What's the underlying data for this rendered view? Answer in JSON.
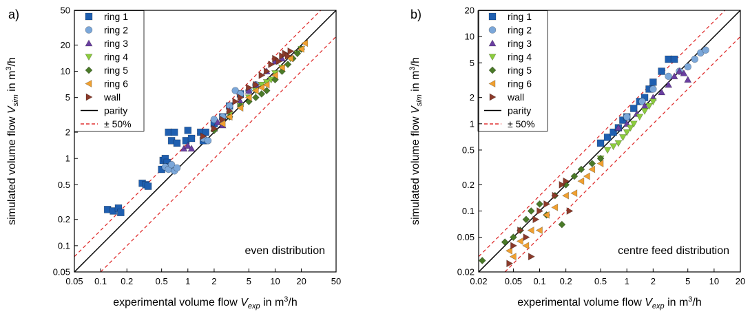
{
  "chart_data": [
    {
      "type": "scatter",
      "panel_label": "a)",
      "annotation": "even distribution",
      "xlabel": {
        "pre": "experimental volume flow ",
        "sym": "V",
        "sub": "exp",
        "unit": " in m",
        "sup": "3",
        "post": "/h"
      },
      "ylabel": {
        "pre": "simulated volume flow ",
        "sym": "V",
        "sub": "sim",
        "unit": " in m",
        "sup": "3",
        "post": "/h"
      },
      "xscale": "log",
      "yscale": "log",
      "xlim": [
        0.05,
        50
      ],
      "ylim": [
        0.05,
        50
      ],
      "xticks": [
        0.05,
        0.1,
        0.2,
        0.5,
        1,
        2,
        5,
        10,
        20,
        50
      ],
      "xtick_labels": [
        "0.05",
        "0.1",
        "0.2",
        "0.5",
        "1",
        "2",
        "5",
        "10",
        "20",
        "50"
      ],
      "yticks": [
        0.05,
        0.1,
        0.2,
        0.5,
        1,
        2,
        5,
        10,
        20,
        50
      ],
      "ytick_labels": [
        "0.05",
        "0.1",
        "0.2",
        "0.5",
        "1",
        "2",
        "5",
        "10",
        "20",
        "50"
      ],
      "legend_position": "top-left",
      "series": [
        {
          "name": "ring 1",
          "marker": "square",
          "color": "#1f5fb0",
          "x": [
            0.12,
            0.14,
            0.16,
            0.17,
            0.3,
            0.33,
            0.35,
            0.5,
            0.52,
            0.55,
            0.58,
            0.62,
            0.6,
            0.65,
            0.7,
            0.75,
            0.95,
            1.0,
            1.1,
            1.4,
            1.5,
            1.6,
            2.0,
            2.5,
            3.0,
            4.0
          ],
          "y": [
            0.26,
            0.25,
            0.27,
            0.24,
            0.52,
            0.5,
            0.48,
            0.75,
            0.95,
            1.0,
            0.9,
            0.8,
            2.0,
            1.6,
            2.0,
            1.5,
            1.6,
            2.1,
            1.7,
            2.0,
            1.6,
            2.0,
            2.5,
            3.0,
            4.0,
            5.5
          ]
        },
        {
          "name": "ring 2",
          "marker": "circle",
          "color": "#7ba7d9",
          "x": [
            0.55,
            0.6,
            0.65,
            0.7,
            0.75,
            1.5,
            1.7,
            2.0,
            2.5,
            3.0,
            3.5,
            4.0,
            5.0,
            6.0
          ],
          "y": [
            0.8,
            0.75,
            0.85,
            0.72,
            0.78,
            1.7,
            1.6,
            2.8,
            3.0,
            4.0,
            6.0,
            5.5,
            6.0,
            7.0
          ]
        },
        {
          "name": "ring 3",
          "marker": "triangle-up",
          "color": "#6a3fa0",
          "x": [
            0.9,
            1.0,
            1.1,
            2.0,
            2.2,
            2.5,
            3.0,
            4.0,
            5.0,
            6.0,
            8.0,
            10.0,
            12.0
          ],
          "y": [
            1.3,
            1.4,
            1.3,
            2.2,
            2.6,
            2.4,
            3.5,
            4.5,
            6.0,
            7.0,
            10.0,
            13.0,
            14.0
          ]
        },
        {
          "name": "ring 4",
          "marker": "triangle-down",
          "color": "#8ccc3e",
          "x": [
            3.0,
            4.0,
            5.0,
            6.0,
            7.0,
            8.0,
            9.0,
            10.0,
            12.0,
            15.0,
            18.0,
            20.0
          ],
          "y": [
            3.2,
            4.0,
            5.0,
            6.0,
            7.0,
            7.5,
            8.0,
            9.5,
            11.0,
            14.0,
            16.0,
            18.0
          ]
        },
        {
          "name": "ring 5",
          "marker": "diamond",
          "color": "#4a7a28",
          "x": [
            2.0,
            3.0,
            4.0,
            5.0,
            6.0,
            7.0,
            8.0,
            10.0,
            12.0,
            14.0,
            16.0,
            18.0,
            20.0
          ],
          "y": [
            2.1,
            3.0,
            4.0,
            4.5,
            5.0,
            5.5,
            6.0,
            8.0,
            10.0,
            12.0,
            14.0,
            16.0,
            18.0
          ]
        },
        {
          "name": "ring 6",
          "marker": "triangle-left",
          "color": "#f0a030",
          "x": [
            2.5,
            3.0,
            4.0,
            5.0,
            6.0,
            7.0,
            8.0,
            10.0,
            12.0,
            15.0,
            20.0,
            22.0
          ],
          "y": [
            2.5,
            3.0,
            3.8,
            5.0,
            6.0,
            6.5,
            7.0,
            9.0,
            11.0,
            14.0,
            18.0,
            21.0
          ]
        },
        {
          "name": "wall",
          "marker": "triangle-right",
          "color": "#8b3a2a",
          "x": [
            1.5,
            2.0,
            2.5,
            3.0,
            3.5,
            4.0,
            5.0,
            6.0,
            7.0,
            8.0,
            9.0,
            10.0,
            11.0,
            12.0,
            13.0,
            14.0,
            15.0
          ],
          "y": [
            1.8,
            2.2,
            2.8,
            3.5,
            4.5,
            5.0,
            6.5,
            7.0,
            9.0,
            10.0,
            12.0,
            14.0,
            13.0,
            15.0,
            16.0,
            15.0,
            17.0
          ]
        }
      ],
      "lines": [
        {
          "name": "parity",
          "style": "solid",
          "color": "#000000"
        },
        {
          "name": "± 50%",
          "style": "dashed",
          "color": "#e03030"
        }
      ]
    },
    {
      "type": "scatter",
      "panel_label": "b)",
      "annotation": "centre feed distribution",
      "xlabel": {
        "pre": "experimental volume flow ",
        "sym": "V",
        "sub": "exp",
        "unit": " in m",
        "sup": "3",
        "post": "/h"
      },
      "ylabel": {
        "pre": "simulated volume flow ",
        "sym": "V",
        "sub": "sim",
        "unit": " in m",
        "sup": "3",
        "post": "/h"
      },
      "xscale": "log",
      "yscale": "log",
      "xlim": [
        0.02,
        20
      ],
      "ylim": [
        0.02,
        20
      ],
      "xticks": [
        0.02,
        0.05,
        0.1,
        0.2,
        0.5,
        1,
        2,
        5,
        10,
        20
      ],
      "xtick_labels": [
        "0.02",
        "0.05",
        "0.1",
        "0.2",
        "0.5",
        "1",
        "2",
        "5",
        "10",
        "20"
      ],
      "yticks": [
        0.02,
        0.05,
        0.1,
        0.2,
        0.5,
        1,
        2,
        5,
        10,
        20
      ],
      "ytick_labels": [
        "0.02",
        "0.05",
        "0.1",
        "0.2",
        "0.5",
        "1",
        "2",
        "5",
        "10",
        "20"
      ],
      "legend_position": "top-left",
      "series": [
        {
          "name": "ring 1",
          "marker": "square",
          "color": "#1f5fb0",
          "x": [
            0.5,
            0.6,
            0.7,
            0.8,
            0.9,
            1.0,
            1.2,
            1.4,
            1.6,
            1.8,
            2.0,
            2.5,
            3.0,
            3.5
          ],
          "y": [
            0.6,
            0.7,
            0.8,
            0.9,
            1.1,
            1.2,
            1.5,
            1.8,
            2.0,
            2.5,
            3.0,
            4.0,
            5.5,
            5.5
          ]
        },
        {
          "name": "ring 2",
          "marker": "circle",
          "color": "#7ba7d9",
          "x": [
            1.0,
            1.5,
            2.0,
            3.0,
            4.0,
            5.0,
            6.0,
            7.0,
            8.0
          ],
          "y": [
            1.2,
            1.8,
            2.5,
            3.5,
            4.0,
            4.5,
            5.5,
            6.5,
            7.0
          ]
        },
        {
          "name": "ring 3",
          "marker": "triangle-up",
          "color": "#6a3fa0",
          "x": [
            0.8,
            1.0,
            1.3,
            1.6,
            2.0,
            2.5,
            3.0,
            3.5,
            4.0,
            4.5,
            5.0
          ],
          "y": [
            0.9,
            1.0,
            1.3,
            1.6,
            2.0,
            2.3,
            2.8,
            3.5,
            4.0,
            3.8,
            3.2
          ]
        },
        {
          "name": "ring 4",
          "marker": "triangle-down",
          "color": "#8ccc3e",
          "x": [
            0.5,
            0.6,
            0.7,
            0.8,
            0.9,
            1.0,
            1.1,
            1.2,
            1.4,
            1.6,
            1.8,
            2.0
          ],
          "y": [
            0.4,
            0.5,
            0.55,
            0.6,
            0.7,
            0.8,
            0.9,
            1.0,
            1.2,
            1.4,
            1.6,
            1.8
          ]
        },
        {
          "name": "ring 5",
          "marker": "diamond",
          "color": "#4a7a28",
          "x": [
            0.022,
            0.04,
            0.05,
            0.06,
            0.07,
            0.08,
            0.1,
            0.12,
            0.15,
            0.18,
            0.2,
            0.25,
            0.3,
            0.4,
            0.5
          ],
          "y": [
            0.027,
            0.044,
            0.05,
            0.06,
            0.08,
            0.1,
            0.12,
            0.09,
            0.15,
            0.07,
            0.2,
            0.25,
            0.3,
            0.35,
            0.4
          ]
        },
        {
          "name": "ring 6",
          "marker": "triangle-left",
          "color": "#f0a030",
          "x": [
            0.045,
            0.05,
            0.06,
            0.07,
            0.08,
            0.1,
            0.12,
            0.15,
            0.2,
            0.25,
            0.3,
            0.35,
            0.4,
            0.5
          ],
          "y": [
            0.035,
            0.03,
            0.045,
            0.04,
            0.06,
            0.06,
            0.09,
            0.11,
            0.15,
            0.16,
            0.22,
            0.25,
            0.3,
            0.35
          ]
        },
        {
          "name": "wall",
          "marker": "triangle-right",
          "color": "#8b3a2a",
          "x": [
            0.045,
            0.05,
            0.06,
            0.07,
            0.08,
            0.09,
            0.1,
            0.12,
            0.15,
            0.18,
            0.2,
            0.22
          ],
          "y": [
            0.025,
            0.04,
            0.06,
            0.05,
            0.03,
            0.08,
            0.1,
            0.12,
            0.15,
            0.2,
            0.22,
            0.1
          ]
        }
      ],
      "lines": [
        {
          "name": "parity",
          "style": "solid",
          "color": "#000000"
        },
        {
          "name": "± 50%",
          "style": "dashed",
          "color": "#e03030"
        }
      ]
    }
  ]
}
